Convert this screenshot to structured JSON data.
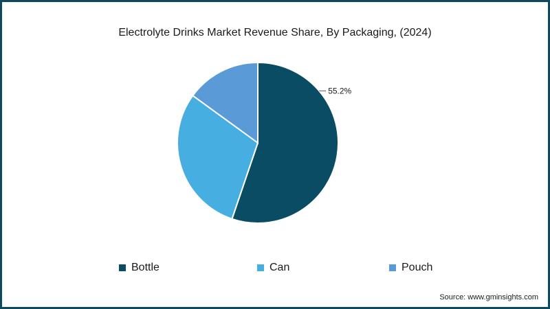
{
  "chart_data": {
    "type": "pie",
    "title": "Electrolyte Drinks Market Revenue Share, By Packaging, (2024)",
    "categories": [
      "Bottle",
      "Can",
      "Pouch"
    ],
    "values": [
      55.2,
      29.8,
      15.0
    ],
    "colors": [
      "#0a4c63",
      "#47aee2",
      "#5a9ad6"
    ],
    "data_labels": [
      {
        "category": "Bottle",
        "text": "55.2%"
      }
    ],
    "legend_position": "bottom"
  },
  "source": "Source: www.gminsights.com",
  "colors": {
    "frame": "#0e4a5e",
    "slice_border": "#ffffff"
  }
}
